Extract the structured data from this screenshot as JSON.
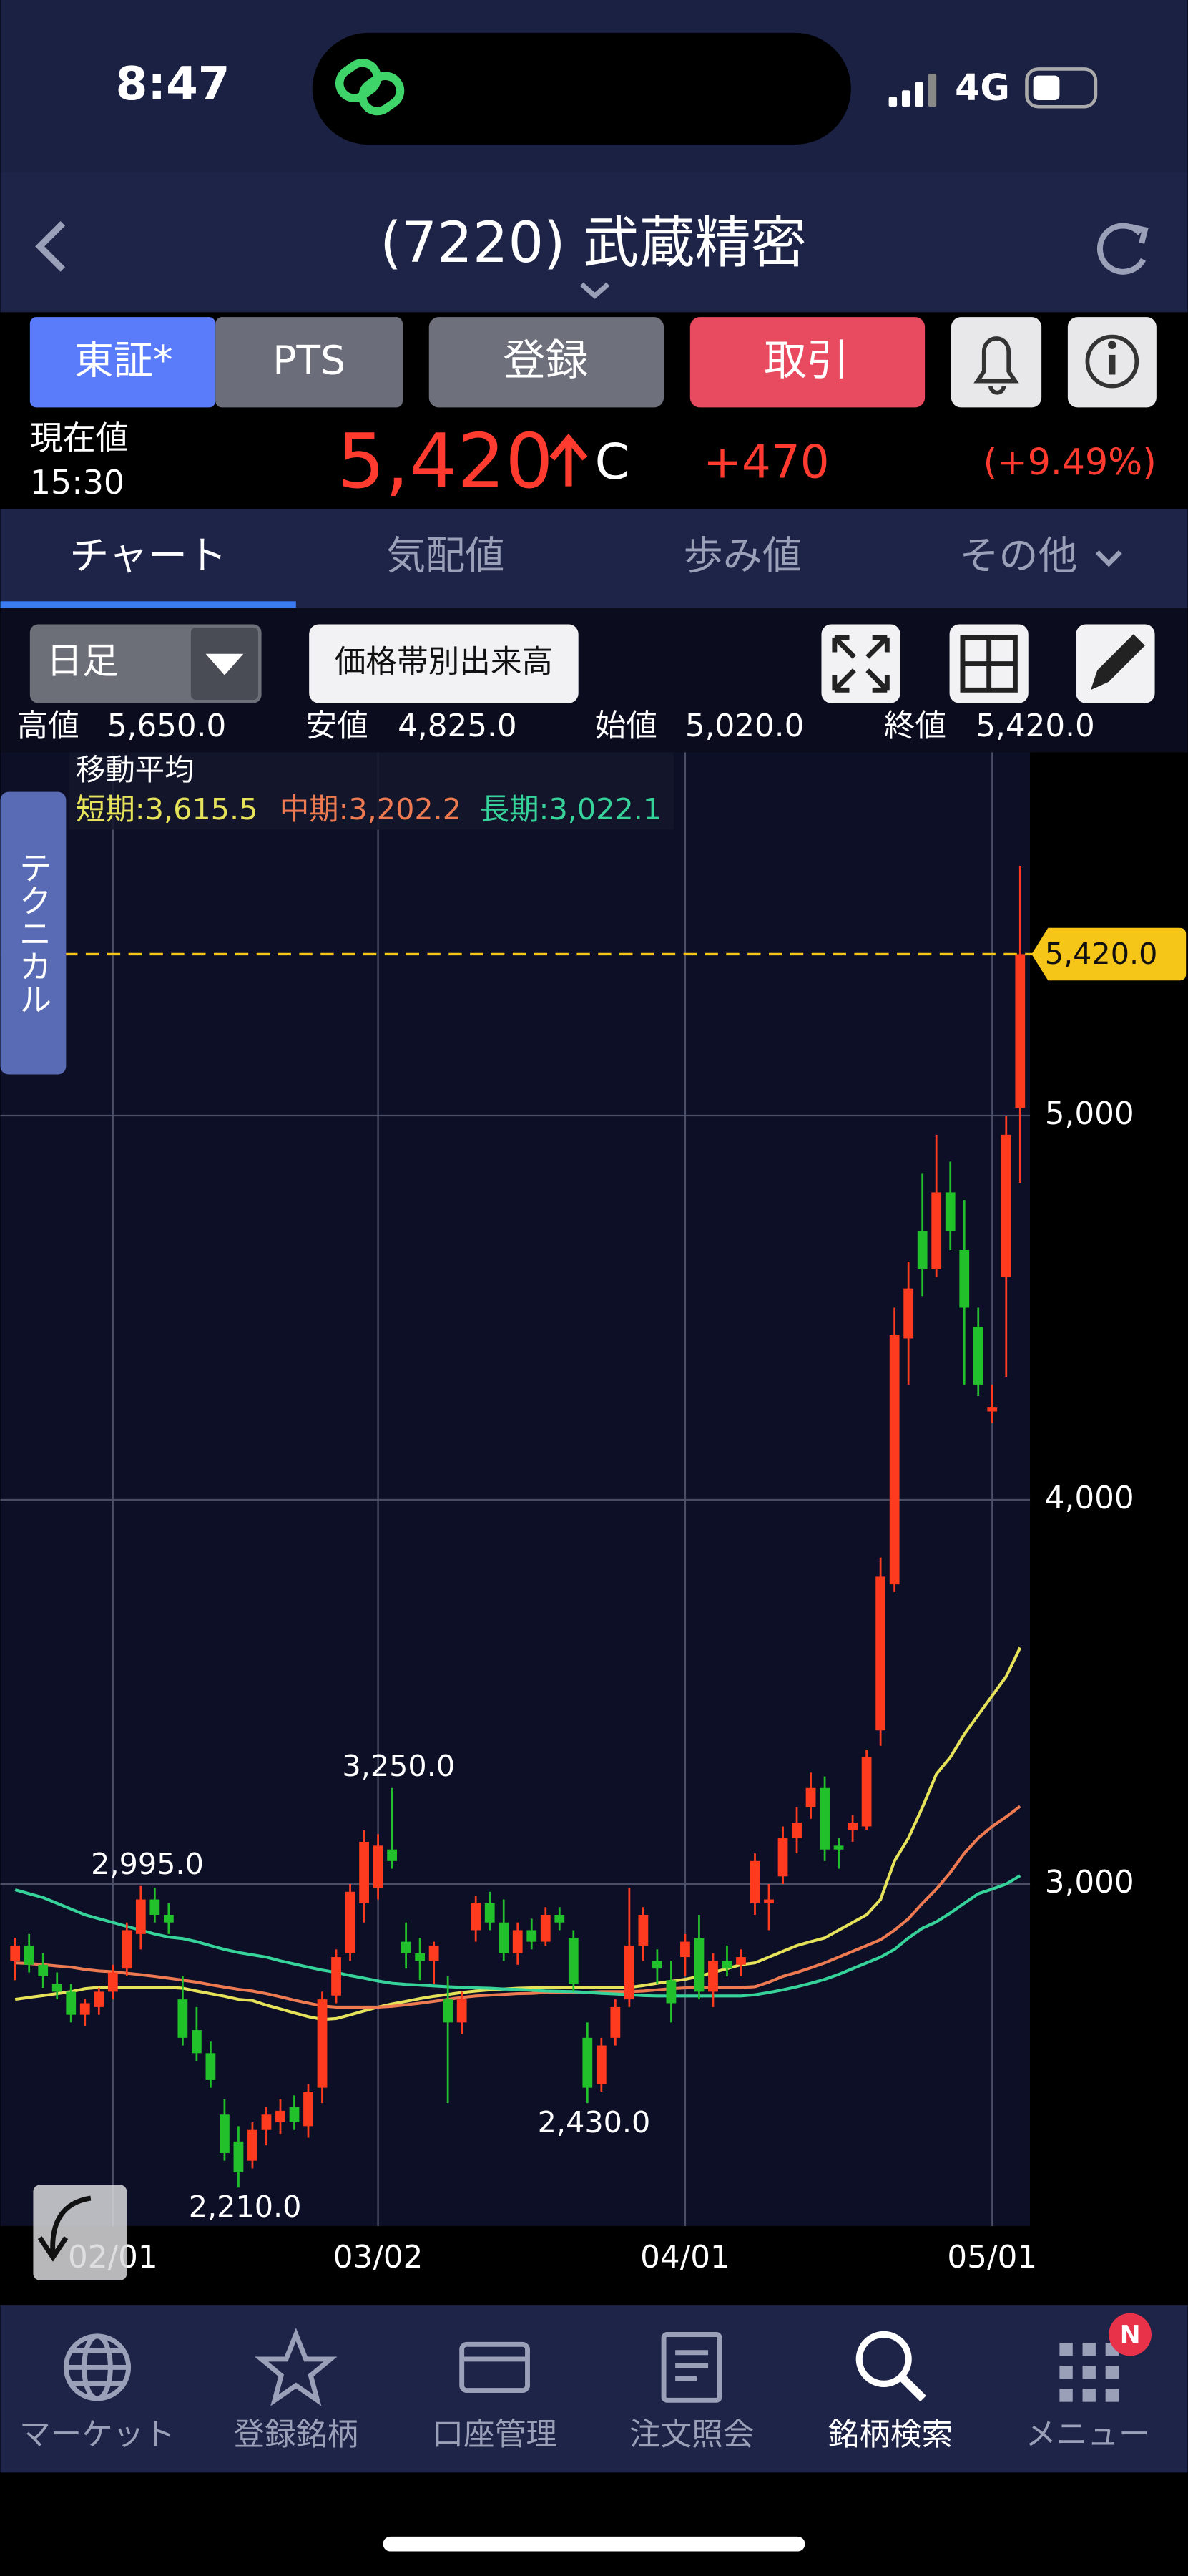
{
  "status_bar": {
    "time": "8:47",
    "network": "4G"
  },
  "header": {
    "title": "(7220) 武蔵精密"
  },
  "buttons": {
    "market": [
      "東証*",
      "PTS"
    ],
    "register": "登録",
    "trade": "取引"
  },
  "quote": {
    "label": "現在値",
    "time": "15:30",
    "price": "5,420",
    "mark": "C",
    "change": "+470",
    "change_pct": "(+9.49%)"
  },
  "tabs": [
    "チャート",
    "気配値",
    "歩み値",
    "その他"
  ],
  "toolbar": {
    "period": "日足",
    "volume_button": "価格帯別出来高"
  },
  "ohlc_summary": [
    {
      "label": "高値",
      "value": "5,650.0"
    },
    {
      "label": "安値",
      "value": "4,825.0"
    },
    {
      "label": "始値",
      "value": "5,020.0"
    },
    {
      "label": "終値",
      "value": "5,420.0"
    }
  ],
  "side_tab": "テクニカル",
  "chart_data": {
    "type": "candlestick",
    "ma_title": "移動平均",
    "up_color": "#ff3b1f",
    "down_color": "#22c02a",
    "categories": [
      null,
      null,
      null,
      null,
      null,
      null,
      null,
      "02/01",
      null,
      null,
      null,
      null,
      null,
      null,
      null,
      null,
      null,
      null,
      null,
      null,
      null,
      null,
      null,
      null,
      null,
      null,
      "03/02",
      null,
      null,
      null,
      null,
      null,
      null,
      null,
      null,
      null,
      null,
      null,
      null,
      null,
      null,
      null,
      null,
      null,
      null,
      null,
      null,
      null,
      "04/01",
      null,
      null,
      null,
      null,
      null,
      null,
      null,
      null,
      null,
      null,
      null,
      null,
      null,
      null,
      null,
      null,
      null,
      null,
      null,
      null,
      null,
      "05/01",
      null,
      null
    ],
    "open": [
      2800,
      2840,
      2790,
      2740,
      2720,
      2660,
      2680,
      2720,
      2780,
      2870,
      2960,
      2920,
      2700,
      2620,
      2560,
      2400,
      2330,
      2280,
      2360,
      2380,
      2420,
      2370,
      2470,
      2710,
      2820,
      2950,
      2990,
      3090,
      2850,
      2820,
      2800,
      2700,
      2640,
      2880,
      2950,
      2900,
      2820,
      2880,
      2850,
      2920,
      2860,
      2600,
      2480,
      2600,
      2700,
      2840,
      2800,
      2750,
      2810,
      2860,
      2720,
      2800,
      2790,
      2950,
      2950,
      3020,
      3120,
      3200,
      3250,
      3100,
      3140,
      3150,
      3400,
      3780,
      4420,
      4700,
      4600,
      4800,
      4650,
      4450,
      4230,
      4580,
      5020
    ],
    "high": [
      2860,
      2870,
      2820,
      2770,
      2740,
      2700,
      2730,
      2790,
      2900,
      2995,
      2990,
      2950,
      2760,
      2680,
      2590,
      2440,
      2370,
      2380,
      2420,
      2440,
      2450,
      2480,
      2720,
      2830,
      3000,
      3140,
      3130,
      3250,
      2900,
      2860,
      2850,
      2760,
      2720,
      2970,
      2980,
      2960,
      2900,
      2910,
      2940,
      2940,
      2880,
      2640,
      2600,
      2700,
      2990,
      2940,
      2830,
      2800,
      2870,
      2920,
      2820,
      2840,
      2830,
      3080,
      3000,
      3150,
      3200,
      3290,
      3280,
      3120,
      3180,
      3350,
      3850,
      4500,
      4620,
      4850,
      4950,
      4880,
      4780,
      4500,
      4300,
      5000,
      5650
    ],
    "low": [
      2750,
      2770,
      2730,
      2700,
      2640,
      2630,
      2660,
      2700,
      2760,
      2830,
      2900,
      2870,
      2580,
      2540,
      2470,
      2280,
      2210,
      2260,
      2320,
      2350,
      2360,
      2340,
      2430,
      2690,
      2800,
      2900,
      2960,
      3040,
      2780,
      2750,
      2740,
      2430,
      2610,
      2850,
      2880,
      2800,
      2790,
      2830,
      2840,
      2880,
      2720,
      2430,
      2460,
      2580,
      2680,
      2800,
      2740,
      2640,
      2760,
      2700,
      2680,
      2760,
      2760,
      2920,
      2880,
      3000,
      3080,
      3170,
      3060,
      3040,
      3110,
      3140,
      3360,
      3760,
      4300,
      4530,
      4580,
      4650,
      4300,
      4270,
      4200,
      4320,
      4825
    ],
    "close": [
      2840,
      2790,
      2760,
      2720,
      2660,
      2690,
      2720,
      2770,
      2880,
      2960,
      2920,
      2900,
      2600,
      2560,
      2490,
      2300,
      2250,
      2360,
      2400,
      2410,
      2380,
      2460,
      2700,
      2810,
      2980,
      3110,
      3100,
      3060,
      2820,
      2800,
      2840,
      2640,
      2700,
      2950,
      2900,
      2820,
      2880,
      2850,
      2920,
      2900,
      2740,
      2470,
      2580,
      2680,
      2840,
      2920,
      2780,
      2690,
      2850,
      2720,
      2800,
      2780,
      2810,
      3060,
      2960,
      3120,
      3160,
      3250,
      3090,
      3090,
      3160,
      3330,
      3800,
      4430,
      4550,
      4600,
      4800,
      4700,
      4500,
      4300,
      4240,
      4950,
      5420
    ],
    "series": [
      {
        "name": "短期:3,615.5",
        "color": "#e6e35a",
        "values": [
          2700,
          2705,
          2710,
          2715,
          2720,
          2728,
          2731,
          2731,
          2731,
          2731,
          2731,
          2731,
          2729,
          2722,
          2715,
          2708,
          2700,
          2697,
          2685,
          2675,
          2665,
          2655,
          2648,
          2650,
          2660,
          2670,
          2680,
          2688,
          2695,
          2702,
          2708,
          2713,
          2718,
          2722,
          2725,
          2727,
          2729,
          2730,
          2731,
          2731,
          2731,
          2731,
          2731,
          2731,
          2731,
          2736,
          2742,
          2747,
          2752,
          2760,
          2770,
          2780,
          2790,
          2795,
          2810,
          2825,
          2840,
          2850,
          2860,
          2880,
          2900,
          2920,
          2960,
          3060,
          3120,
          3200,
          3286,
          3330,
          3390,
          3440,
          3490,
          3540,
          3615.5
        ]
      },
      {
        "name": "中期:3,202.2",
        "color": "#ee7a52",
        "values": [
          2795,
          2793,
          2790,
          2787,
          2784,
          2778,
          2774,
          2772,
          2768,
          2764,
          2760,
          2755,
          2750,
          2745,
          2738,
          2732,
          2726,
          2722,
          2715,
          2707,
          2698,
          2690,
          2683,
          2680,
          2680,
          2680,
          2680,
          2682,
          2686,
          2690,
          2695,
          2700,
          2705,
          2709,
          2711,
          2713,
          2715,
          2716,
          2718,
          2718,
          2719,
          2719,
          2720,
          2720,
          2720,
          2722,
          2725,
          2728,
          2730,
          2731,
          2731,
          2731,
          2731,
          2733,
          2745,
          2760,
          2770,
          2782,
          2795,
          2810,
          2825,
          2840,
          2855,
          2880,
          2910,
          2950,
          2987,
          3030,
          3080,
          3120,
          3150,
          3175,
          3202.2
        ]
      },
      {
        "name": "長期:3,022.1",
        "color": "#36d39a",
        "values": [
          2985,
          2975,
          2965,
          2950,
          2935,
          2920,
          2910,
          2900,
          2890,
          2880,
          2870,
          2862,
          2858,
          2850,
          2840,
          2830,
          2822,
          2816,
          2810,
          2800,
          2792,
          2784,
          2776,
          2770,
          2762,
          2755,
          2748,
          2742,
          2739,
          2737,
          2735,
          2733,
          2731,
          2730,
          2729,
          2727,
          2726,
          2724,
          2722,
          2721,
          2720,
          2718,
          2716,
          2714,
          2712,
          2710,
          2709,
          2709,
          2709,
          2709,
          2709,
          2709,
          2709,
          2712,
          2718,
          2725,
          2733,
          2742,
          2752,
          2765,
          2780,
          2795,
          2810,
          2830,
          2860,
          2885,
          2902,
          2925,
          2950,
          2975,
          2987,
          3000,
          3022.1
        ]
      }
    ],
    "ylim": [
      2110,
      5945
    ],
    "yticks": [
      {
        "value": 3000,
        "label": "3,000"
      },
      {
        "value": 4000,
        "label": "4,000"
      },
      {
        "value": 5000,
        "label": "5,000"
      }
    ],
    "grid": true,
    "current_price": {
      "value": 5420,
      "label": "5,420.0",
      "color": "#f5c518"
    },
    "annotations": [
      {
        "label": "2,995.0",
        "value": 2995,
        "candle": 9
      },
      {
        "label": "3,250.0",
        "value": 3250,
        "candle": 27
      },
      {
        "label": "2,430.0",
        "value": 2430,
        "candle": 41
      },
      {
        "label": "2,210.0",
        "value": 2210,
        "candle": 16
      }
    ]
  },
  "nav": {
    "items": [
      "マーケット",
      "登録銘柄",
      "口座管理",
      "注文照会",
      "銘柄検索",
      "メニュー"
    ],
    "badge": "N"
  }
}
